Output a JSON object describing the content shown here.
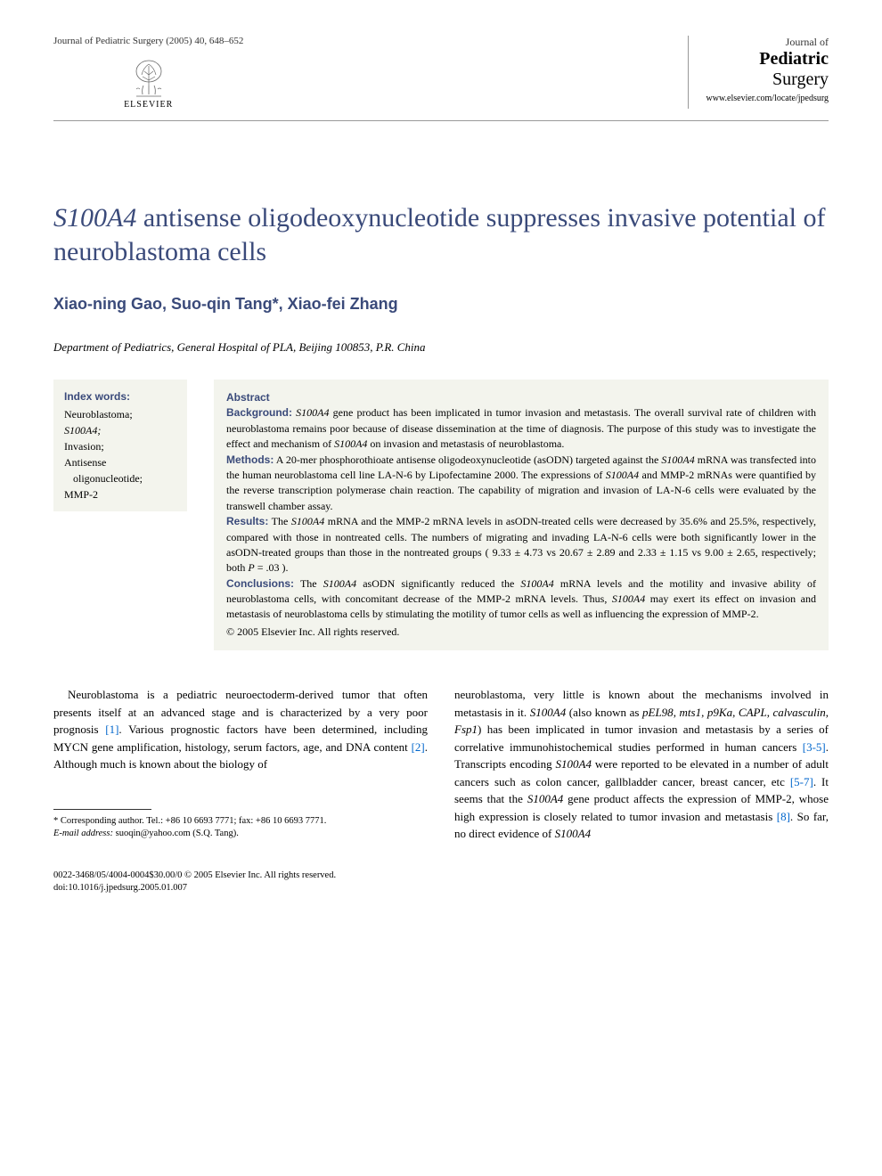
{
  "header": {
    "citation": "Journal of Pediatric Surgery (2005) 40, 648–652",
    "publisher": "ELSEVIER",
    "journal_prefix": "Journal of",
    "journal_main": "Pediatric",
    "journal_suffix": "Surgery",
    "journal_url": "www.elsevier.com/locate/jpedsurg"
  },
  "title": {
    "italic_part": "S100A4",
    "rest": " antisense oligodeoxynucleotide suppresses invasive potential of neuroblastoma cells"
  },
  "authors": "Xiao-ning Gao, Suo-qin Tang*, Xiao-fei Zhang",
  "affiliation": "Department of Pediatrics, General Hospital of PLA, Beijing 100853, P.R. China",
  "keywords": {
    "heading": "Index words:",
    "items": [
      {
        "text": "Neuroblastoma;",
        "italic": false
      },
      {
        "text": "S100A4;",
        "italic": true
      },
      {
        "text": "Invasion;",
        "italic": false
      },
      {
        "text": "Antisense",
        "italic": false,
        "continue": "oligonucleotide;"
      },
      {
        "text": "MMP-2",
        "italic": false
      }
    ]
  },
  "abstract": {
    "heading": "Abstract",
    "sections": {
      "background": {
        "label": "Background:",
        "text_parts": [
          {
            "t": " ",
            "i": false
          },
          {
            "t": "S100A4",
            "i": true
          },
          {
            "t": " gene product has been implicated in tumor invasion and metastasis. The overall survival rate of children with neuroblastoma remains poor because of disease dissemination at the time of diagnosis. The purpose of this study was to investigate the effect and mechanism of ",
            "i": false
          },
          {
            "t": "S100A4",
            "i": true
          },
          {
            "t": " on invasion and metastasis of neuroblastoma.",
            "i": false
          }
        ]
      },
      "methods": {
        "label": "Methods:",
        "text_parts": [
          {
            "t": " A 20-mer phosphorothioate antisense oligodeoxynucleotide (asODN) targeted against the ",
            "i": false
          },
          {
            "t": "S100A4",
            "i": true
          },
          {
            "t": " mRNA was transfected into the human neuroblastoma cell line LA-N-6 by Lipofectamine 2000. The expressions of ",
            "i": false
          },
          {
            "t": "S100A4",
            "i": true
          },
          {
            "t": " and MMP-2 mRNAs were quantified by the reverse transcription polymerase chain reaction. The capability of migration and invasion of LA-N-6 cells were evaluated by the transwell chamber assay.",
            "i": false
          }
        ]
      },
      "results": {
        "label": "Results:",
        "text_parts": [
          {
            "t": " The ",
            "i": false
          },
          {
            "t": "S100A4",
            "i": true
          },
          {
            "t": " mRNA and the MMP-2 mRNA levels in asODN-treated cells were decreased by 35.6% and 25.5%, respectively, compared with those in nontreated cells. The numbers of migrating and invading LA-N-6 cells were both significantly lower in the asODN-treated groups than those in the nontreated groups ( 9.33 ± 4.73 vs 20.67 ± 2.89 and 2.33 ± 1.15 vs 9.00 ± 2.65, respectively; both ",
            "i": false
          },
          {
            "t": "P",
            "i": true
          },
          {
            "t": " = .03 ).",
            "i": false
          }
        ]
      },
      "conclusions": {
        "label": "Conclusions:",
        "text_parts": [
          {
            "t": " The ",
            "i": false
          },
          {
            "t": "S100A4",
            "i": true
          },
          {
            "t": " asODN significantly reduced the ",
            "i": false
          },
          {
            "t": "S100A4",
            "i": true
          },
          {
            "t": " mRNA levels and the motility and invasive ability of neuroblastoma cells, with concomitant decrease of the MMP-2 mRNA levels. Thus, ",
            "i": false
          },
          {
            "t": "S100A4",
            "i": true
          },
          {
            "t": " may exert its effect on invasion and metastasis of neuroblastoma cells by stimulating the motility of tumor cells as well as influencing the expression of MMP-2.",
            "i": false
          }
        ]
      }
    },
    "copyright": "© 2005 Elsevier Inc. All rights reserved."
  },
  "body": {
    "col1": {
      "parts": [
        {
          "t": "Neuroblastoma is a pediatric neuroectoderm-derived tumor that often presents itself at an advanced stage and is characterized by a very poor prognosis ",
          "i": false
        },
        {
          "t": "[1]",
          "ref": true
        },
        {
          "t": ". Various prognostic factors have been determined, including MYCN gene amplification, histology, serum factors, age, and DNA content ",
          "i": false
        },
        {
          "t": "[2]",
          "ref": true
        },
        {
          "t": ". Although much is known about the biology of",
          "i": false
        }
      ]
    },
    "col2": {
      "parts": [
        {
          "t": "neuroblastoma, very little is known about the mechanisms involved in metastasis in it. ",
          "i": false
        },
        {
          "t": "S100A4",
          "i": true
        },
        {
          "t": " (also known as ",
          "i": false
        },
        {
          "t": "pEL98",
          "i": true
        },
        {
          "t": ", ",
          "i": false
        },
        {
          "t": "mts1",
          "i": true
        },
        {
          "t": ", ",
          "i": false
        },
        {
          "t": "p9Ka",
          "i": true
        },
        {
          "t": ", ",
          "i": false
        },
        {
          "t": "CAPL",
          "i": true
        },
        {
          "t": ", ",
          "i": false
        },
        {
          "t": "calvasculin",
          "i": true
        },
        {
          "t": ", ",
          "i": false
        },
        {
          "t": "Fsp1",
          "i": true
        },
        {
          "t": ") has been implicated in tumor invasion and metastasis by a series of correlative immunohistochemical studies performed in human cancers ",
          "i": false
        },
        {
          "t": "[3-5]",
          "ref": true
        },
        {
          "t": ". Transcripts encoding ",
          "i": false
        },
        {
          "t": "S100A4",
          "i": true
        },
        {
          "t": " were reported to be elevated in a number of adult cancers such as colon cancer, gallbladder cancer, breast cancer, etc ",
          "i": false
        },
        {
          "t": "[5-7]",
          "ref": true
        },
        {
          "t": ". It seems that the ",
          "i": false
        },
        {
          "t": "S100A4",
          "i": true
        },
        {
          "t": " gene product affects the expression of MMP-2, whose high expression is closely related to tumor invasion and metastasis ",
          "i": false
        },
        {
          "t": "[8]",
          "ref": true
        },
        {
          "t": ". So far, no direct evidence of ",
          "i": false
        },
        {
          "t": "S100A4",
          "i": true
        }
      ]
    }
  },
  "footnote": {
    "corresponding": "* Corresponding author. Tel.: +86 10 6693 7771; fax: +86 10 6693 7771.",
    "email_label": "E-mail address:",
    "email": " suoqin@yahoo.com (S.Q. Tang)."
  },
  "footer": {
    "line1": "0022-3468/05/4004-0004$30.00/0 © 2005 Elsevier Inc. All rights reserved.",
    "line2": "doi:10.1016/j.jpedsurg.2005.01.007"
  },
  "colors": {
    "heading_blue": "#3a4a7a",
    "ref_blue": "#0066cc",
    "box_bg": "#f3f4ed",
    "text": "#000000",
    "bg": "#ffffff"
  }
}
